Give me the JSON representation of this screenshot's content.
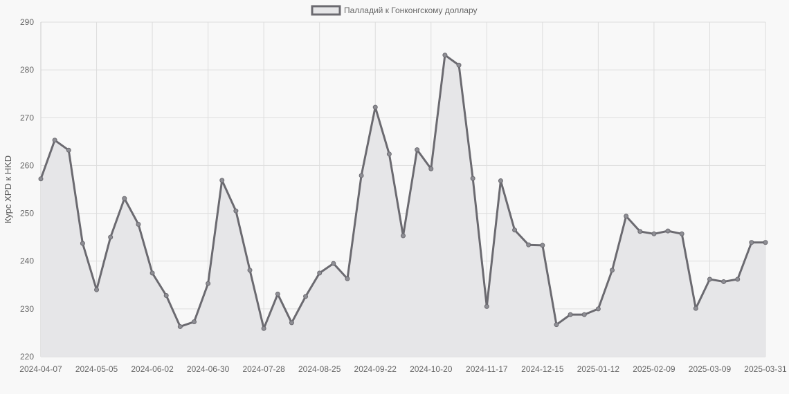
{
  "chart_data": {
    "type": "area",
    "legend": {
      "label": "Палладий к Гонконгскому доллару",
      "position": "top-center"
    },
    "ylabel": "Курс XPD к HKD",
    "xlabel": "",
    "ylim": [
      220,
      290
    ],
    "y_ticks": [
      220,
      230,
      240,
      250,
      260,
      270,
      280,
      290
    ],
    "x_tick_labels": [
      "2024-04-07",
      "2024-05-05",
      "2024-06-02",
      "2024-06-30",
      "2024-07-28",
      "2024-08-25",
      "2024-09-22",
      "2024-10-20",
      "2024-11-17",
      "2024-12-15",
      "2025-01-12",
      "2025-02-09",
      "2025-03-09",
      "2025-03-31"
    ],
    "grid": true,
    "colors": {
      "line": "#6b6a70",
      "fill": "#e6e6e8",
      "point": "#8e8e94",
      "background": "#f8f8f8"
    },
    "series": [
      {
        "name": "Палладий к Гонконгскому доллару",
        "values": [
          257.2,
          265.3,
          263.2,
          243.7,
          234.0,
          245.0,
          253.1,
          247.7,
          237.5,
          232.8,
          226.3,
          227.3,
          235.3,
          256.9,
          250.5,
          238.1,
          225.9,
          233.1,
          227.1,
          232.6,
          237.5,
          239.5,
          236.3,
          257.9,
          272.2,
          262.4,
          245.3,
          263.3,
          259.3,
          283.1,
          281.0,
          257.3,
          230.5,
          256.8,
          246.5,
          243.4,
          243.3,
          226.7,
          228.8,
          228.8,
          230.0,
          238.1,
          249.4,
          246.2,
          245.7,
          246.3,
          245.7,
          230.1,
          236.2,
          235.7,
          236.2,
          243.9,
          243.9
        ]
      }
    ]
  }
}
